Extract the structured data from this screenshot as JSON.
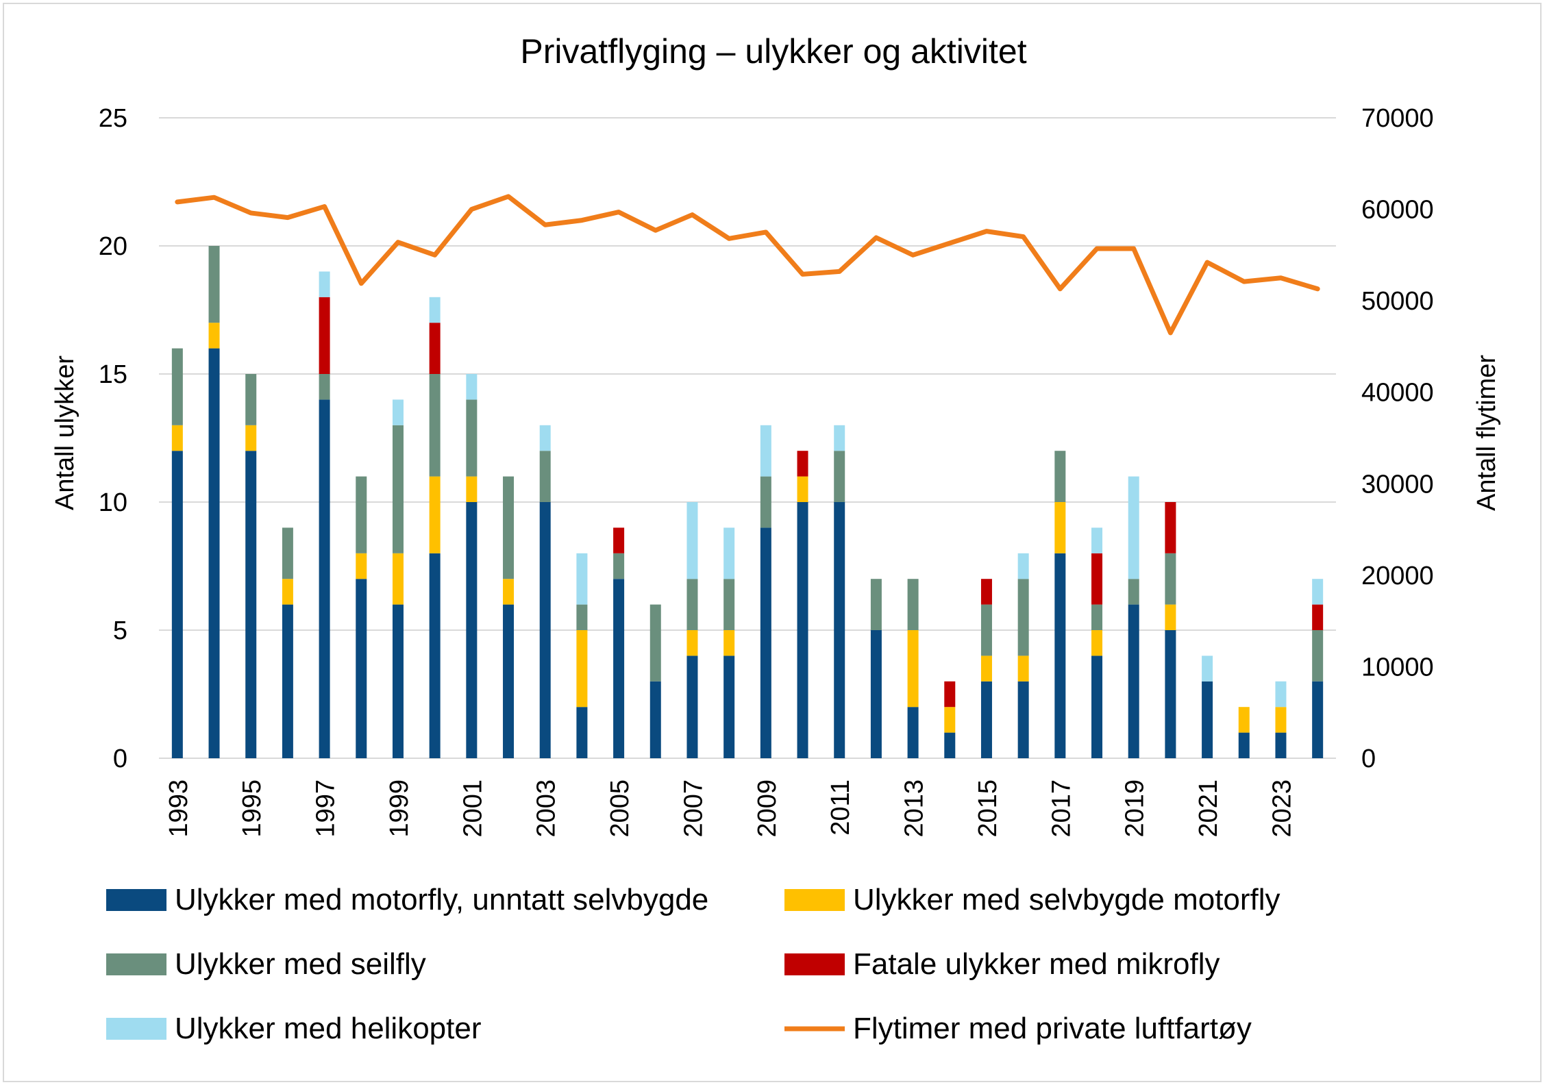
{
  "chart_data": {
    "type": "bar",
    "stacked": true,
    "title": "Privatflyging – ulykker og aktivitet",
    "ylabel": "Antall ulykker",
    "ylabel_right": "Antall flytimer",
    "ylim": [
      0,
      25
    ],
    "ylim_right": [
      0,
      70000
    ],
    "yticks": [
      "0",
      "5",
      "10",
      "15",
      "20",
      "25"
    ],
    "yticks_right": [
      "0",
      "10000",
      "20000",
      "30000",
      "40000",
      "50000",
      "60000",
      "70000"
    ],
    "x_tick_labels": [
      "1993",
      "1995",
      "1997",
      "1999",
      "2001",
      "2003",
      "2005",
      "2007",
      "2009",
      "2011",
      "2013",
      "2015",
      "2017",
      "2019",
      "2021",
      "2023"
    ],
    "categories": [
      "1993",
      "1994",
      "1995",
      "1996",
      "1997",
      "1998",
      "1999",
      "2000",
      "2001",
      "2002",
      "2003",
      "2004",
      "2005",
      "2006",
      "2007",
      "2008",
      "2009",
      "2010",
      "2011",
      "2012",
      "2013",
      "2014",
      "2015",
      "2016",
      "2017",
      "2018",
      "2019",
      "2020",
      "2021",
      "2022",
      "2023",
      "2024"
    ],
    "grid": true,
    "legend_position": "bottom",
    "series": [
      {
        "name": "Ulykker med motorfly, unntatt selvbygde",
        "color": "#0a4a7f",
        "kind": "bar",
        "values": [
          12,
          16,
          12,
          6,
          14,
          7,
          6,
          8,
          10,
          6,
          10,
          2,
          7,
          3,
          4,
          4,
          9,
          10,
          10,
          5,
          2,
          1,
          3,
          3,
          8,
          4,
          6,
          5,
          3,
          1,
          1,
          3
        ]
      },
      {
        "name": "Ulykker med selvbygde motorfly",
        "color": "#ffc000",
        "kind": "bar",
        "values": [
          1,
          1,
          1,
          1,
          0,
          1,
          2,
          3,
          1,
          1,
          0,
          3,
          0,
          0,
          1,
          1,
          0,
          1,
          0,
          0,
          3,
          1,
          1,
          1,
          2,
          1,
          0,
          1,
          0,
          1,
          1,
          0
        ]
      },
      {
        "name": "Ulykker med seilfly",
        "color": "#6a8f7d",
        "kind": "bar",
        "values": [
          3,
          3,
          2,
          2,
          1,
          3,
          5,
          4,
          3,
          4,
          2,
          1,
          1,
          3,
          2,
          2,
          2,
          0,
          2,
          2,
          2,
          0,
          2,
          3,
          2,
          1,
          1,
          2,
          0,
          0,
          0,
          2
        ]
      },
      {
        "name": "Fatale ulykker med mikrofly",
        "color": "#c00000",
        "kind": "bar",
        "values": [
          0,
          0,
          0,
          0,
          3,
          0,
          0,
          2,
          0,
          0,
          0,
          0,
          1,
          0,
          0,
          0,
          0,
          1,
          0,
          0,
          0,
          1,
          1,
          0,
          0,
          2,
          0,
          2,
          0,
          0,
          0,
          1
        ]
      },
      {
        "name": "Ulykker med helikopter",
        "color": "#9fdcf0",
        "kind": "bar",
        "values": [
          0,
          0,
          0,
          0,
          1,
          0,
          1,
          1,
          1,
          0,
          1,
          2,
          0,
          0,
          3,
          2,
          2,
          0,
          1,
          0,
          0,
          0,
          0,
          1,
          0,
          1,
          4,
          0,
          1,
          0,
          1,
          1
        ]
      },
      {
        "name": "Flytimer med private luftfartøy",
        "color": "#f07d1a",
        "kind": "line",
        "axis": "right",
        "values": [
          60800,
          61300,
          59600,
          59100,
          60300,
          51900,
          56400,
          55000,
          60000,
          61400,
          58300,
          58800,
          59700,
          57700,
          59400,
          56800,
          57500,
          52900,
          53200,
          56900,
          55000,
          56300,
          57600,
          57000,
          51300,
          55700,
          55700,
          46500,
          54200,
          52100,
          52500,
          51300
        ]
      }
    ]
  }
}
